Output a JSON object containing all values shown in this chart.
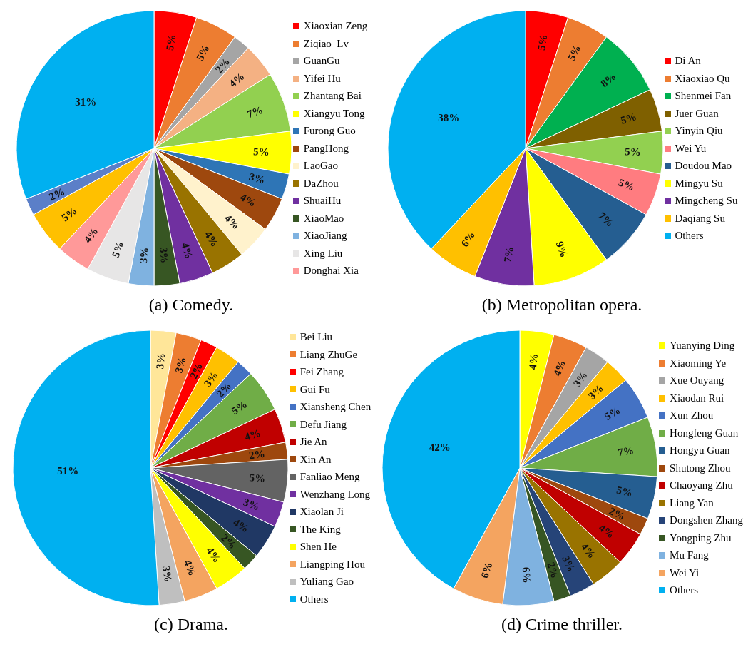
{
  "chart_data": [
    {
      "type": "pie",
      "title": "(a) Comedy.",
      "legend": "right",
      "categories": [
        "Xiaoxian Zeng",
        "Ziqiao  Lv",
        "GuanGu",
        "Yifei Hu",
        "Zhantang Bai",
        "Xiangyu Tong",
        "Furong Guo",
        "PangHong",
        "LaoGao",
        "DaZhou",
        "ShuaiHu",
        "XiaoMao",
        "XiaoJiang",
        "Xing Liu",
        "Donghai Xia",
        null,
        null,
        null
      ],
      "values": [
        5,
        5,
        2,
        4,
        7,
        5,
        3,
        4,
        4,
        4,
        4,
        3,
        3,
        5,
        4,
        5,
        2,
        31
      ],
      "value_labels": [
        "5%",
        "5%",
        "2%",
        "4%",
        "7%",
        "5%",
        "3%",
        "4%",
        "4%",
        "4%",
        "4%",
        "3%",
        "3%",
        "5%",
        "4%",
        "5%",
        "2%",
        "31%"
      ],
      "colors": [
        "#ff0000",
        "#ed7d31",
        "#a5a5a5",
        "#f4b183",
        "#92d050",
        "#ffff00",
        "#2e75b6",
        "#9e480e",
        "#fff2cc",
        "#997300",
        "#7030a0",
        "#375623",
        "#7fb2e0",
        "#e7e6e6",
        "#ff9999",
        "#ffc000",
        "#5b7fc8",
        "#00b0f0"
      ]
    },
    {
      "type": "pie",
      "title": "(b) Metropolitan opera.",
      "legend": "right",
      "categories": [
        "Di An",
        "Xiaoxiao Qu",
        "Shenmei Fan",
        "Juer Guan",
        "Yinyin Qiu",
        "Wei Yu",
        "Doudou Mao",
        "Mingyu Su",
        "Mingcheng Su",
        "Daqiang Su",
        "Others"
      ],
      "values": [
        5,
        5,
        8,
        5,
        5,
        5,
        7,
        9,
        7,
        6,
        38
      ],
      "value_labels": [
        "5%",
        "5%",
        "8%",
        "5%",
        "5%",
        "5%",
        "7%",
        "9%",
        "7%",
        "6%",
        "38%"
      ],
      "colors": [
        "#ff0000",
        "#ed7d31",
        "#00b050",
        "#7f6000",
        "#92d050",
        "#ff7c80",
        "#255e91",
        "#ffff00",
        "#7030a0",
        "#ffc000",
        "#00b0f0"
      ]
    },
    {
      "type": "pie",
      "title": "(c) Drama.",
      "legend": "right",
      "categories": [
        "Bei Liu",
        "Liang ZhuGe",
        "Fei Zhang",
        "Gui Fu",
        "Xiansheng Chen",
        "Defu Jiang",
        "Jie An",
        "Xin An",
        "Fanliao Meng",
        "Wenzhang Long",
        "Xiaolan Ji",
        "The King",
        "Shen He",
        "Liangping Hou",
        "Yuliang Gao",
        "Others"
      ],
      "values": [
        3,
        3,
        2,
        3,
        2,
        5,
        4,
        2,
        5,
        3,
        4,
        2,
        4,
        4,
        3,
        51
      ],
      "value_labels": [
        "3%",
        "3%",
        "2%",
        "3%",
        "2%",
        "5%",
        "4%",
        "2%",
        "5%",
        "3%",
        "4%",
        "2%",
        "4%",
        "4%",
        "3%",
        "51%"
      ],
      "colors": [
        "#ffe699",
        "#ed7d31",
        "#ff0000",
        "#ffc000",
        "#4472c4",
        "#70ad47",
        "#c00000",
        "#9e480e",
        "#636363",
        "#7030a0",
        "#203864",
        "#375623",
        "#ffff00",
        "#f4a460",
        "#bfbfbf",
        "#00b0f0"
      ]
    },
    {
      "type": "pie",
      "title": "(d) Crime thriller.",
      "legend": "right",
      "categories": [
        "Yuanying Ding",
        "Xiaoming Ye",
        "Xue Ouyang",
        "Xiaodan Rui",
        "Xun Zhou",
        "Hongfeng Guan",
        "Hongyu Guan",
        "Shutong Zhou",
        "Chaoyang Zhu",
        "Liang Yan",
        "Dongshen Zhang",
        "Yongping Zhu",
        "Mu Fang",
        "Wei Yi",
        "Others"
      ],
      "values": [
        4,
        4,
        3,
        3,
        5,
        7,
        5,
        2,
        4,
        4,
        3,
        2,
        6,
        6,
        42
      ],
      "value_labels": [
        "4%",
        "4%",
        "3%",
        "3%",
        "5%",
        "7%",
        "5%",
        "2%",
        "4%",
        "4%",
        "3%",
        "2%",
        "6%",
        "6%",
        "42%"
      ],
      "colors": [
        "#ffff00",
        "#ed7d31",
        "#a5a5a5",
        "#ffc000",
        "#4472c4",
        "#70ad47",
        "#255e91",
        "#9e480e",
        "#c00000",
        "#997300",
        "#264478",
        "#375623",
        "#7fb2e0",
        "#f4a460",
        "#00b0f0"
      ]
    }
  ]
}
